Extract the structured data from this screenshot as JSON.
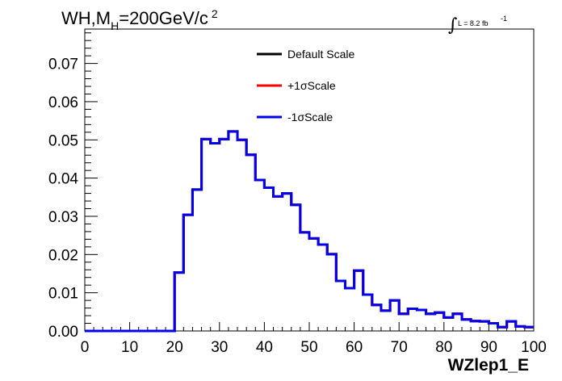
{
  "chart_data": {
    "type": "line",
    "title": "WH,M",
    "title_sub": "H",
    "title_rest": "=200GeV/c",
    "title_sup": "2",
    "lumi_label": "L = 8.2 fb",
    "lumi_sup": "-1",
    "xlabel": "WZlep1_E",
    "ylabel": "",
    "xlim": [
      0,
      100
    ],
    "ylim": [
      0,
      0.079
    ],
    "x_ticks": [
      "0",
      "10",
      "20",
      "30",
      "40",
      "50",
      "60",
      "70",
      "80",
      "90",
      "100"
    ],
    "y_ticks": [
      "0.00",
      "0.01",
      "0.02",
      "0.03",
      "0.04",
      "0.05",
      "0.06",
      "0.07"
    ],
    "grid": false,
    "legend_position": "top-center",
    "bin_edges": [
      0,
      2,
      4,
      6,
      8,
      10,
      12,
      14,
      16,
      18,
      20,
      22,
      24,
      26,
      28,
      30,
      32,
      34,
      36,
      38,
      40,
      42,
      44,
      46,
      48,
      50,
      52,
      54,
      56,
      58,
      60,
      62,
      64,
      66,
      68,
      70,
      72,
      74,
      76,
      78,
      80,
      82,
      84,
      86,
      88,
      90,
      92,
      94,
      96,
      98,
      100
    ],
    "series": [
      {
        "name": "Default Scale",
        "color": "#000000",
        "values": [
          0,
          0,
          0,
          0,
          0,
          0,
          0,
          0,
          0,
          0,
          0.0153,
          0.0304,
          0.037,
          0.0502,
          0.0491,
          0.0502,
          0.0522,
          0.05,
          0.0461,
          0.0395,
          0.0375,
          0.0352,
          0.036,
          0.033,
          0.0258,
          0.0242,
          0.0226,
          0.0201,
          0.0131,
          0.0112,
          0.0158,
          0.0095,
          0.0068,
          0.0053,
          0.008,
          0.0045,
          0.0058,
          0.0055,
          0.0045,
          0.0048,
          0.0035,
          0.0045,
          0.003,
          0.0026,
          0.0025,
          0.002,
          0.001,
          0.0025,
          0.0012,
          0.001
        ]
      },
      {
        "name": "+1σScale",
        "color": "#ff0000",
        "values": [
          0,
          0,
          0,
          0,
          0,
          0,
          0,
          0,
          0,
          0,
          0.0153,
          0.0304,
          0.037,
          0.0502,
          0.0491,
          0.0502,
          0.0522,
          0.05,
          0.0461,
          0.0395,
          0.0375,
          0.0352,
          0.036,
          0.033,
          0.0258,
          0.0242,
          0.0226,
          0.0201,
          0.0131,
          0.0112,
          0.0158,
          0.0095,
          0.0068,
          0.0053,
          0.008,
          0.0045,
          0.0058,
          0.0055,
          0.0045,
          0.0048,
          0.0035,
          0.0045,
          0.003,
          0.0026,
          0.0025,
          0.002,
          0.001,
          0.0025,
          0.0012,
          0.001
        ]
      },
      {
        "name": "-1σScale",
        "color": "#0000ee",
        "values": [
          0,
          0,
          0,
          0,
          0,
          0,
          0,
          0,
          0,
          0,
          0.0153,
          0.0304,
          0.037,
          0.0502,
          0.0491,
          0.0502,
          0.0522,
          0.05,
          0.0461,
          0.0395,
          0.0375,
          0.0352,
          0.036,
          0.033,
          0.0258,
          0.0242,
          0.0226,
          0.0201,
          0.0131,
          0.0112,
          0.0158,
          0.0095,
          0.0068,
          0.0053,
          0.008,
          0.0045,
          0.0058,
          0.0055,
          0.0045,
          0.0048,
          0.0035,
          0.0045,
          0.003,
          0.0026,
          0.0025,
          0.002,
          0.001,
          0.0025,
          0.0012,
          0.001
        ]
      }
    ]
  }
}
